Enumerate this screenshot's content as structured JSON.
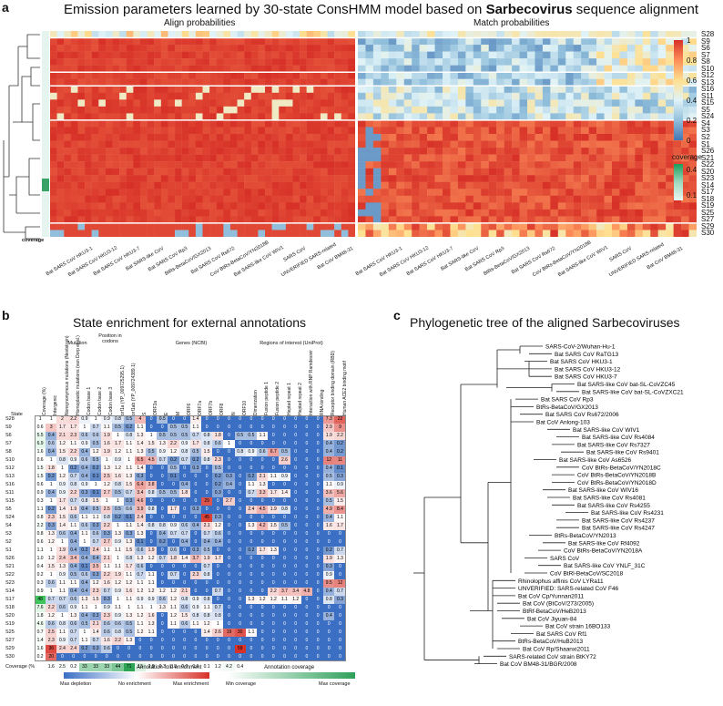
{
  "panel_a": {
    "letter": "a",
    "title_prefix": "Emission parameters learned by 30-state ConsHMM model based on ",
    "title_bold": "Sarbecovirus",
    "title_suffix": " sequence alignment",
    "align_title": "Align probabilities",
    "match_title": "Match probabilities",
    "coverage_row_label": "coverage",
    "states": [
      "S28",
      "S9",
      "S6",
      "S7",
      "S8",
      "S10",
      "S12",
      "S13",
      "S16",
      "S11",
      "S15",
      "S5",
      "S24",
      "S4",
      "S3",
      "S2",
      "S1",
      "S26",
      "S21",
      "S22",
      "S20",
      "S23",
      "S14",
      "S17",
      "S18",
      "S19",
      "S25",
      "S27",
      "S29",
      "S30"
    ],
    "colorbar": {
      "ticks": [
        "1",
        "0.8",
        "0.6",
        "0.4",
        "0.2",
        "0"
      ]
    },
    "coverage_bar": {
      "title": "coverage",
      "ticks": [
        "0.4",
        "0.1"
      ]
    },
    "viruses": [
      "Bat SARS CoV HKU3-1",
      "Bat SARS CoV HKU3-12",
      "Bat SARS CoV HKU3-7",
      "Bat SARS-like CoV",
      "Bat SARS CoV Rp3",
      "BtRs-BetaCoV/GX2013",
      "Bat SARS CoV Rs672",
      "CoV BtRs-BetaCoV/YN2018B",
      "Bat SARS-like CoV WIV1",
      "SARS CoV",
      "UNVERIFIED SARS-related",
      "Bat CoV BM48-31"
    ]
  },
  "panel_b": {
    "letter": "b",
    "title": "State enrichment for external annotations",
    "groups": [
      "Mutation",
      "Position in codons",
      "Genes (NCBI)",
      "Regions of interest (UniProt)"
    ],
    "columns": [
      "Coverage (%)",
      "Intergenic",
      "Nonsynonymous mutations (Nextstrain)",
      "Homoplastic mutations (van Dorp et al.)",
      "Codon base 1",
      "Codon base 2",
      "Codon base 3",
      "orf1a (YP_009725295.1)",
      "orf1ab (YP_009724389.1)",
      "S",
      "ORF3a",
      "E",
      "M",
      "ORF6",
      "ORF7a",
      "ORF7b",
      "ORF8",
      "N",
      "ORF10",
      "Dimerization",
      "Fusion peptide 1",
      "Fusion peptide 2",
      "Heptad repeat 1",
      "Heptad repeat 2",
      "Interaction with RNP Ramdesivir",
      "RNA-binding",
      "Receptor binding domain (RBD)",
      "Human ACE2 binding motif"
    ],
    "state_label": "State",
    "rows": [
      {
        "s": "S28",
        "v": [
          "1",
          "1",
          "2",
          "2.2",
          "0.9",
          "1",
          "0.9",
          "0.8",
          "0.5",
          "4",
          "0",
          "0.5",
          "0",
          "0",
          "1.4",
          "0",
          "0",
          "0",
          "0",
          "0",
          "0",
          "0",
          "0",
          "0",
          "0",
          "0",
          "7.3",
          "22"
        ]
      },
      {
        "s": "S9",
        "v": [
          "0.6",
          "3",
          "1.7",
          "1.7",
          "1",
          "0.7",
          "1.1",
          "0.5",
          "0.2",
          "1.1",
          "0",
          "0",
          "0.5",
          "0.5",
          "1.1",
          "0",
          "0",
          "0",
          "0",
          "0",
          "0",
          "0",
          "0",
          "0",
          "0",
          "0",
          "2.9",
          "9"
        ]
      },
      {
        "s": "S6",
        "v": [
          "5.5",
          "0.4",
          "2.1",
          "2.3",
          "0.6",
          "0.6",
          "1.9",
          "1",
          "0.8",
          "1.3",
          "1",
          "0.5",
          "0.5",
          "0.5",
          "0.7",
          "0.8",
          "1.8",
          "0",
          "0.5",
          "0.5",
          "1.1",
          "0",
          "0",
          "0",
          "0",
          "0",
          "1.9",
          "2.2"
        ]
      },
      {
        "s": "S7",
        "v": [
          "6.9",
          "0.6",
          "1.2",
          "1.1",
          "0.9",
          "0.5",
          "1.6",
          "1.7",
          "1.1",
          "1.4",
          "1.5",
          "1.3",
          "2.2",
          "0.9",
          "1.7",
          "0.8",
          "0.6",
          "1",
          "0",
          "0",
          "0",
          "0",
          "0",
          "0",
          "0",
          "0",
          "0.4",
          "0.2"
        ]
      },
      {
        "s": "S8",
        "v": [
          "1.6",
          "0.4",
          "1.5",
          "2.2",
          "0.4",
          "1.2",
          "1.9",
          "1.2",
          "1.1",
          "1.3",
          "0.5",
          "0.9",
          "1.2",
          "0.8",
          "0.5",
          "1.5",
          "0",
          "0",
          "0.8",
          "0.9",
          "0.6",
          "6.7",
          "0.5",
          "0",
          "0",
          "0",
          "0.4",
          "0.2"
        ]
      },
      {
        "s": "S10",
        "v": [
          "0.6",
          "1",
          "0.8",
          "0.9",
          "0.6",
          "0.5",
          "1",
          "0.9",
          "1",
          "6.5",
          "4.5",
          "0.7",
          "0.2",
          "0.7",
          "0.2",
          "0.8",
          "2.3",
          "0",
          "0",
          "0",
          "0",
          "0",
          "2.6",
          "0",
          "0",
          "0",
          "12",
          "11"
        ]
      },
      {
        "s": "S12",
        "v": [
          "1.5",
          "1.8",
          "1",
          "0.2",
          "0.4",
          "0.2",
          "1.3",
          "1.2",
          "1.1",
          "1.4",
          "0",
          "0",
          "0.5",
          "0",
          "0.3",
          "0",
          "0.5",
          "0",
          "0",
          "0",
          "0",
          "0",
          "0",
          "0",
          "0",
          "0",
          "0.4",
          "0.1"
        ]
      },
      {
        "s": "S13",
        "v": [
          "1.5",
          "0.2",
          "1.2",
          "0.7",
          "0.4",
          "0.1",
          "2.5",
          "1.6",
          "1.3",
          "0.3",
          "0",
          "0",
          "0.1",
          "0",
          "0",
          "0",
          "0.2",
          "0.3",
          "0",
          "0.2",
          "2.1",
          "1.1",
          "0.9",
          "0",
          "0",
          "0",
          "0.5",
          "0.3"
        ]
      },
      {
        "s": "S16",
        "v": [
          "0.6",
          "1",
          "0.9",
          "0.8",
          "0.9",
          "1",
          "1.2",
          "0.8",
          "1.5",
          "6.4",
          "3.8",
          "0",
          "0",
          "0.4",
          "0",
          "0",
          "0.2",
          "0.4",
          "0",
          "1.1",
          "1.3",
          "0",
          "0",
          "0",
          "0",
          "0",
          "1.1",
          "0.9"
        ]
      },
      {
        "s": "S11",
        "v": [
          "0.9",
          "0.4",
          "0.9",
          "2.2",
          "0.3",
          "0.1",
          "2.7",
          "0.5",
          "0.7",
          "3.4",
          "0.8",
          "0.5",
          "0.5",
          "1.8",
          "0",
          "0",
          "0.3",
          "0",
          "0",
          "0.7",
          "3.3",
          "1.7",
          "1.4",
          "0",
          "0",
          "0",
          "3.6",
          "5.6"
        ]
      },
      {
        "s": "S15",
        "v": [
          "0.3",
          "1",
          "1.7",
          "0.7",
          "0.8",
          "1.5",
          "1",
          "1",
          "0.3",
          "4.6",
          "0",
          "0",
          "0",
          "0",
          "0",
          "29",
          "0",
          "2.7",
          "0",
          "0",
          "0",
          "0",
          "0",
          "0",
          "0",
          "0",
          "0.5",
          "1.5"
        ]
      },
      {
        "s": "S5",
        "v": [
          "1.1",
          "0.2",
          "1.4",
          "1.9",
          "0.4",
          "0.5",
          "2.5",
          "0.5",
          "0.6",
          "3.9",
          "0.8",
          "0",
          "1.7",
          "0",
          "0.3",
          "0",
          "0",
          "0",
          "0",
          "2.4",
          "4.5",
          "1.9",
          "0.8",
          "0",
          "0",
          "0",
          "4.9",
          "8.4"
        ]
      },
      {
        "s": "S24",
        "v": [
          "0.8",
          "2.3",
          "1.5",
          "0.6",
          "1.1",
          "1.1",
          "0.8",
          "0.2",
          "0.1",
          "2.4",
          "0",
          "0",
          "0",
          "0",
          "0",
          "45",
          "0.3",
          "0",
          "0",
          "0",
          "0",
          "0",
          "0",
          "0",
          "0",
          "0",
          "0.4",
          "1.1"
        ]
      },
      {
        "s": "S4",
        "v": [
          "2.2",
          "0.3",
          "1.4",
          "1.1",
          "0.6",
          "0.3",
          "2.2",
          "1",
          "1.1",
          "1.4",
          "0.8",
          "0.8",
          "0.9",
          "0.6",
          "0.4",
          "2.1",
          "1.2",
          "0",
          "0",
          "1.3",
          "4.2",
          "1.5",
          "0.5",
          "0",
          "0",
          "0",
          "1.6",
          "1.7"
        ]
      },
      {
        "s": "S3",
        "v": [
          "0.8",
          "1.3",
          "0.6",
          "0.4",
          "1.1",
          "0.6",
          "0.3",
          "1.3",
          "0.3",
          "1.3",
          "0",
          "0.4",
          "0.7",
          "0.7",
          "0",
          "0.7",
          "0.6",
          "0",
          "0",
          "0",
          "0",
          "0",
          "0",
          "0",
          "0",
          "0",
          "0",
          "0"
        ]
      },
      {
        "s": "S2",
        "v": [
          "0.6",
          "1.2",
          "1",
          "0.4",
          "1",
          "0.7",
          "2.7",
          "0.9",
          "1.3",
          "0.1",
          "0",
          "0.2",
          "0",
          "0.4",
          "0",
          "0.4",
          "0.4",
          "0",
          "0",
          "0",
          "0",
          "0",
          "0",
          "0",
          "0",
          "0",
          "0",
          "0"
        ]
      },
      {
        "s": "S1",
        "v": [
          "1.1",
          "1",
          "1.9",
          "0.4",
          "0.2",
          "2.4",
          "1.1",
          "1.1",
          "1.5",
          "0.6",
          "1.9",
          "0",
          "0.6",
          "0",
          "0.3",
          "0.5",
          "0",
          "0",
          "0",
          "0.2",
          "1.7",
          "1.3",
          "0",
          "0",
          "0",
          "0",
          "0.2",
          "0.7"
        ]
      },
      {
        "s": "S26",
        "v": [
          "1.0",
          "1.2",
          "2.4",
          "3.4",
          "0.4",
          "0.4",
          "2.1",
          "1",
          "0.8",
          "1.3",
          "1.2",
          "0.7",
          "1.8",
          "1.4",
          "3.7",
          "1.9",
          "1.7",
          "0",
          "0",
          "0",
          "0",
          "0",
          "0",
          "0",
          "0",
          "0",
          "1.9",
          "1.3"
        ]
      },
      {
        "s": "S21",
        "v": [
          "0.4",
          "1.5",
          "1.3",
          "0.4",
          "0.1",
          "3.5",
          "1.1",
          "1.1",
          "1.7",
          "0.6",
          "0",
          "0",
          "0",
          "0",
          "0",
          "0.7",
          "0",
          "0",
          "0",
          "0",
          "0",
          "0",
          "0",
          "0",
          "0",
          "0",
          "0.3",
          "0"
        ]
      },
      {
        "s": "S22",
        "v": [
          "0.2",
          "1",
          "0.9",
          "0.5",
          "0.6",
          "0.3",
          "2.2",
          "1.9",
          "1.1",
          "0.7",
          "1.1",
          "0",
          "0.7",
          "0",
          "2.3",
          "0.8",
          "0",
          "0",
          "0",
          "0",
          "0",
          "0",
          "0",
          "0",
          "0",
          "0",
          "0.9",
          "0"
        ]
      },
      {
        "s": "S23",
        "v": [
          "0.3",
          "0.6",
          "1.1",
          "1.1",
          "0.4",
          "1.2",
          "1.6",
          "1.2",
          "1.2",
          "1.1",
          "1.1",
          "0",
          "0",
          "0",
          "0",
          "0",
          "0",
          "0",
          "0",
          "0",
          "0",
          "0",
          "0",
          "0",
          "0",
          "0",
          "9.5",
          "12"
        ]
      },
      {
        "s": "S14",
        "v": [
          "0.9",
          "1",
          "1.1",
          "0.4",
          "0.4",
          "2.3",
          "0.7",
          "0.9",
          "1.6",
          "1.2",
          "1.2",
          "1.2",
          "1.2",
          "2.1",
          "0",
          "0",
          "0.7",
          "0",
          "0",
          "0",
          "0",
          "2.2",
          "3.7",
          "3.4",
          "4.8",
          "0",
          "0.4",
          "0.7"
        ]
      },
      {
        "s": "S17",
        "v": [
          "48",
          "0.7",
          "0.7",
          "0.6",
          "1.3",
          "1.5",
          "0.3",
          "1",
          "1.1",
          "0.9",
          "0.9",
          "0.6",
          "1.2",
          "0.8",
          "0.9",
          "0.8",
          "0",
          "0",
          "0",
          "1.3",
          "1.2",
          "1.2",
          "1.1",
          "1.2",
          "0",
          "0",
          "0.8",
          "0.3"
        ]
      },
      {
        "s": "S18",
        "v": [
          "7.6",
          "2.2",
          "0.6",
          "0.9",
          "1.1",
          "1",
          "0.9",
          "1.1",
          "1",
          "1.1",
          "1",
          "1.3",
          "1.1",
          "0.6",
          "0.9",
          "1.1",
          "0.7",
          "0",
          "0",
          "0",
          "0",
          "0",
          "0",
          "0",
          "0",
          "0",
          "0",
          "0"
        ]
      },
      {
        "s": "S20",
        "v": [
          "1.8",
          "1.2",
          "1",
          "1.3",
          "0.4",
          "0.3",
          "2.3",
          "0.9",
          "1.3",
          "1.2",
          "1.6",
          "0",
          "1.2",
          "1.5",
          "0.8",
          "0.8",
          "0.8",
          "0",
          "0",
          "0",
          "0",
          "0",
          "0",
          "0",
          "0",
          "0",
          "0.4",
          "0"
        ]
      },
      {
        "s": "S19",
        "v": [
          "4.6",
          "0.6",
          "0.8",
          "0.6",
          "0.5",
          "2.1",
          "0.6",
          "0.6",
          "0.5",
          "1.1",
          "1.3",
          "0",
          "1.1",
          "0.6",
          "1.1",
          "1.2",
          "1",
          "0",
          "0",
          "0",
          "0",
          "0",
          "0",
          "0",
          "0",
          "0",
          "0",
          "0"
        ]
      },
      {
        "s": "S25",
        "v": [
          "0.7",
          "2.5",
          "1.1",
          "0.7",
          "1",
          "1.4",
          "0.6",
          "0.8",
          "0.5",
          "1.2",
          "1.1",
          "0",
          "0",
          "0",
          "0",
          "1.4",
          "2.6",
          "19",
          "30",
          "1.1",
          "0",
          "0",
          "0",
          "0",
          "0",
          "0",
          "0",
          "0"
        ]
      },
      {
        "s": "S27",
        "v": [
          "1.4",
          "2.3",
          "0.9",
          "0.7",
          "1.1",
          "0.7",
          "1.6",
          "2.2",
          "1.3",
          "0",
          "0",
          "0",
          "0",
          "0",
          "0",
          "0",
          "0",
          "0",
          "0",
          "0",
          "0",
          "0",
          "0",
          "0",
          "0",
          "0",
          "0",
          "0"
        ]
      },
      {
        "s": "S29",
        "v": [
          "1.6",
          "36",
          "2.4",
          "2.4",
          "0.2",
          "0.3",
          "0.6",
          "0",
          "0",
          "0",
          "0",
          "0",
          "0",
          "0",
          "0",
          "0",
          "0",
          "0",
          "59",
          "0",
          "0",
          "0",
          "0",
          "0",
          "0",
          "0",
          "0",
          "0"
        ]
      },
      {
        "s": "S30",
        "v": [
          "0.2",
          "20",
          "0",
          "0",
          "0",
          "0",
          "0",
          "0",
          "0",
          "0",
          "0",
          "0",
          "0",
          "0",
          "0",
          "0",
          "0",
          "0",
          "0",
          "0",
          "0",
          "0",
          "0",
          "0",
          "0",
          "0",
          "0",
          "0"
        ]
      }
    ],
    "coverage_row": {
      "label": "Coverage (%)",
      "v": [
        "",
        "1.6",
        "2.5",
        "0.2",
        "33",
        "33",
        "33",
        "44",
        "71",
        "13",
        "2.8",
        "0.3",
        "0.8",
        "0.6",
        "0.6",
        "0.1",
        "1.2",
        "4.2",
        "0.4",
        "",
        "",
        "",
        "",
        "",
        "",
        "",
        "",
        ""
      ]
    },
    "legend": {
      "fold_title": "Annotation fold enrichment",
      "fold_labels": [
        "Max depletion",
        "No enrichment",
        "Max enrichment"
      ],
      "cov_title": "Annotation coverage",
      "cov_labels": [
        "Min coverage",
        "Max coverage"
      ]
    }
  },
  "panel_c": {
    "letter": "c",
    "title": "Phylogenetic tree of the aligned Sarbecoviruses",
    "leaves": [
      "SARS-CoV-2/Wuhan-Hu-1",
      "Bat SARS CoV RaTG13",
      "Bat SARS CoV HKU3-1",
      "Bat SARS CoV HKU3-12",
      "Bat SARS CoV HKU3-7",
      "Bat SARS-like CoV bat-SL-CoVZC45",
      "Bat SARS-like CoV bat-SL-CoVZXC21",
      "Bat SARS CoV Rp3",
      "BtRs-BetaCoV/GX2013",
      "Bat SARS CoV Rs672/2006",
      "Bat CoV Anlong-103",
      "Bat SARS-like CoV WIV1",
      "Bat SARS-like CoV Rs4084",
      "Bat SARS-like CoV Rs7327",
      "Bat SARS-like CoV Rs9401",
      "Bat SARS-like CoV As6526",
      "CoV BtRs-BetaCoV/YN2018C",
      "CoV BtRs-BetaCoV/YN2018B",
      "CoV BtRs-BetaCoV/YN2018D",
      "Bat SARS-like CoV WIV16",
      "Bat SARS-like CoV Rs4081",
      "Bat SARS-like CoV Rs4255",
      "Bat SARS-like CoV Rs4231",
      "Bat SARS-like CoV Rs4237",
      "Bat SARS-like CoV Rs4247",
      "BtRs-BetaCoV/YN2013",
      "Bat SARS-like CoV Rf4092",
      "CoV BtRs-BetaCoV/YN2018A",
      "SARS CoV",
      "Bat SARS-like CoV YNLF_31C",
      "CoV BtRl-BetaCoV/SC2018",
      "Rhinolophus affinis CoV LYRa11",
      "UNVERIFIED: SARS-related CoV F46",
      "Bat CoV Cp/Yunnan2011",
      "Bat CoV (BtCoV/273/2005)",
      "BtRf-BetaCoV/HeB2013",
      "Bat CoV Jiyuan-84",
      "Bat CoV strain 16BO133",
      "Bat SARS CoV Rf1",
      "BtRs-BetaCoV/HuB2013",
      "Bat CoV Rp/Shaanxi2011",
      "SARS-related CoV strain BtKY72",
      "Bat CoV BM48-31/BGR/2008"
    ]
  }
}
